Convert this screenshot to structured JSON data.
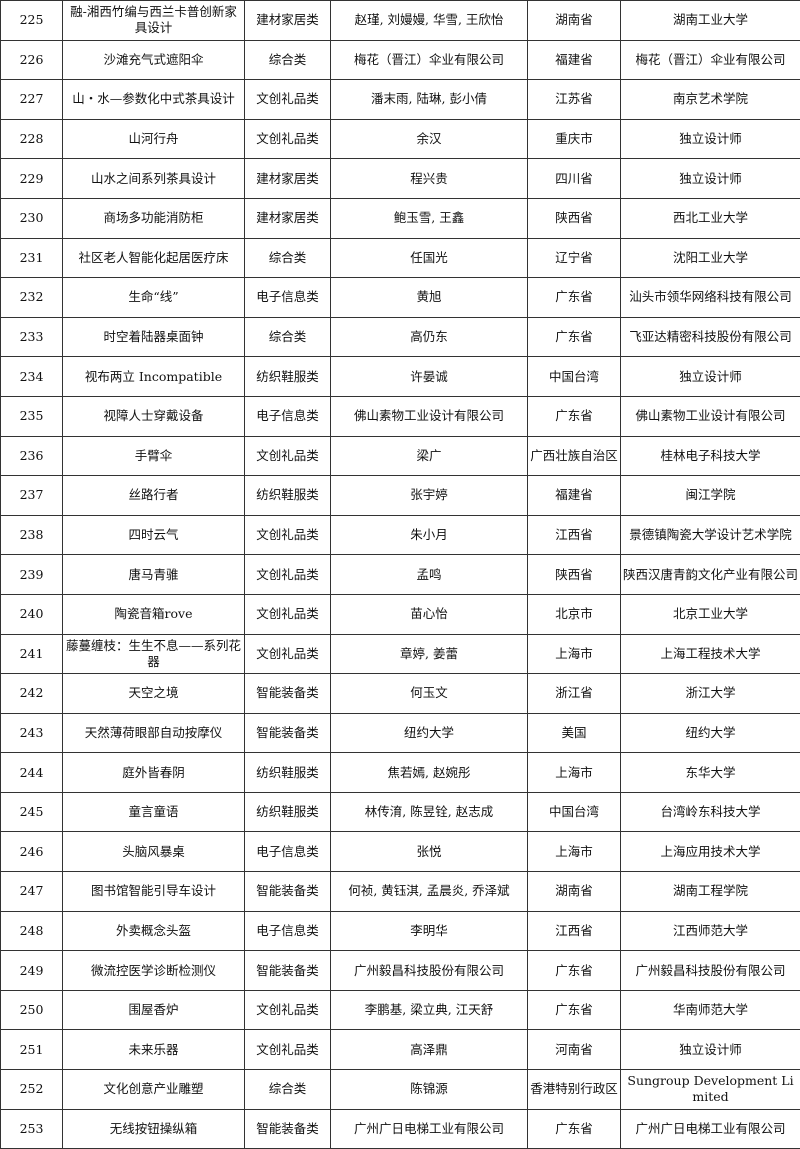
{
  "table": {
    "rows": [
      [
        "225",
        "融-湘西竹编与西兰卡普创新家具设计",
        "建材家居类",
        "赵瑾, 刘嫚嫚, 华雪, 王欣怡",
        "湖南省",
        "湖南工业大学"
      ],
      [
        "226",
        "沙滩充气式遮阳伞",
        "综合类",
        "梅花（晋江）伞业有限公司",
        "福建省",
        "梅花（晋江）伞业有限公司"
      ],
      [
        "227",
        "山・水—参数化中式茶具设计",
        "文创礼品类",
        "潘末雨, 陆琳, 彭小倩",
        "江苏省",
        "南京艺术学院"
      ],
      [
        "228",
        "山河行舟",
        "文创礼品类",
        "余汉",
        "重庆市",
        "独立设计师"
      ],
      [
        "229",
        "山水之间系列茶具设计",
        "建材家居类",
        "程兴贵",
        "四川省",
        "独立设计师"
      ],
      [
        "230",
        "商场多功能消防柜",
        "建材家居类",
        "鲍玉雪, 王鑫",
        "陕西省",
        "西北工业大学"
      ],
      [
        "231",
        "社区老人智能化起居医疗床",
        "综合类",
        "任国光",
        "辽宁省",
        "沈阳工业大学"
      ],
      [
        "232",
        "生命“线”",
        "电子信息类",
        "黄旭",
        "广东省",
        "汕头市领华网络科技有限公司"
      ],
      [
        "233",
        "时空着陆器桌面钟",
        "综合类",
        "高仍东",
        "广东省",
        "飞亚达精密科技股份有限公司"
      ],
      [
        "234",
        "视布两立 Incompatible",
        "纺织鞋服类",
        "许晏诚",
        "中国台湾",
        "独立设计师"
      ],
      [
        "235",
        "视障人士穿戴设备",
        "电子信息类",
        "佛山素物工业设计有限公司",
        "广东省",
        "佛山素物工业设计有限公司"
      ],
      [
        "236",
        "手臂伞",
        "文创礼品类",
        "梁广",
        "广西壮族自治区",
        "桂林电子科技大学"
      ],
      [
        "237",
        "丝路行者",
        "纺织鞋服类",
        "张宇婷",
        "福建省",
        "闽江学院"
      ],
      [
        "238",
        "四时云气",
        "文创礼品类",
        "朱小月",
        "江西省",
        "景德镇陶瓷大学设计艺术学院"
      ],
      [
        "239",
        "唐马青骓",
        "文创礼品类",
        "孟鸣",
        "陕西省",
        "陕西汉唐青韵文化产业有限公司"
      ],
      [
        "240",
        "陶瓷音箱rove",
        "文创礼品类",
        "苗心怡",
        "北京市",
        "北京工业大学"
      ],
      [
        "241",
        "藤蔓缠枝：生生不息——系列花器",
        "文创礼品类",
        "章婷, 姜蕾",
        "上海市",
        "上海工程技术大学"
      ],
      [
        "242",
        "天空之境",
        "智能装备类",
        "何玉文",
        "浙江省",
        "浙江大学"
      ],
      [
        "243",
        "天然薄荷眼部自动按摩仪",
        "智能装备类",
        "纽约大学",
        "美国",
        "纽约大学"
      ],
      [
        "244",
        "庭外皆春阴",
        "纺织鞋服类",
        "焦若嫣, 赵婉彤",
        "上海市",
        "东华大学"
      ],
      [
        "245",
        "童言童语",
        "纺织鞋服类",
        "林传淯, 陈昱铨, 赵志成",
        "中国台湾",
        "台湾岭东科技大学"
      ],
      [
        "246",
        "头脑风暴桌",
        "电子信息类",
        "张悦",
        "上海市",
        "上海应用技术大学"
      ],
      [
        "247",
        "图书馆智能引导车设计",
        "智能装备类",
        "何祯, 黄钰淇, 孟晨炎, 乔泽斌",
        "湖南省",
        "湖南工程学院"
      ],
      [
        "248",
        "外卖概念头盔",
        "电子信息类",
        "李明华",
        "江西省",
        "江西师范大学"
      ],
      [
        "249",
        "微流控医学诊断检测仪",
        "智能装备类",
        "广州毅昌科技股份有限公司",
        "广东省",
        "广州毅昌科技股份有限公司"
      ],
      [
        "250",
        "围屋香炉",
        "文创礼品类",
        "李鹏基, 梁立典, 江天舒",
        "广东省",
        "华南师范大学"
      ],
      [
        "251",
        "未来乐器",
        "文创礼品类",
        "高泽鼎",
        "河南省",
        "独立设计师"
      ],
      [
        "252",
        "文化创意产业雕塑",
        "综合类",
        "陈锦源",
        "香港特别行政区",
        "Sungroup Development Limited"
      ],
      [
        "253",
        "无线按钮操纵箱",
        "智能装备类",
        "广州广日电梯工业有限公司",
        "广东省",
        "广州广日电梯工业有限公司"
      ]
    ]
  }
}
